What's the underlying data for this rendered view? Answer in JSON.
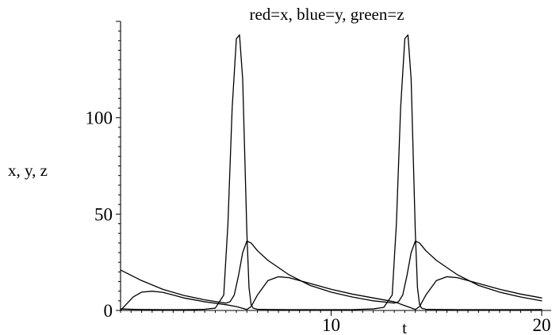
{
  "chart_data": {
    "type": "line",
    "title": "red=x, blue=y, green=z",
    "xlabel": "t",
    "ylabel": "x, y, z",
    "xlim": [
      0,
      20
    ],
    "ylim": [
      0,
      150
    ],
    "x_ticks": [
      10,
      20
    ],
    "x_tick_labels": [
      "10",
      "20"
    ],
    "y_ticks": [
      0,
      50,
      100
    ],
    "y_tick_labels": [
      "0",
      "50",
      "100"
    ],
    "grid": false,
    "legend": "none",
    "series": [
      {
        "name": "x",
        "x": [
          0,
          0.5,
          1,
          1.5,
          2,
          2.5,
          3,
          3.5,
          4,
          4.5,
          4.9,
          5.1,
          5.3,
          5.5,
          5.65,
          5.8,
          5.9,
          6,
          6.1,
          6.2,
          6.3,
          6.5,
          7,
          7.5,
          8,
          9,
          10,
          11,
          12,
          12.5,
          12.9,
          13.1,
          13.3,
          13.5,
          13.65,
          13.8,
          13.9,
          14,
          14.1,
          14.2,
          14.3,
          14.5,
          15,
          15.5,
          16,
          17,
          18,
          19,
          20
        ],
        "values": [
          0.8,
          0.6,
          0.5,
          0.45,
          0.4,
          0.4,
          0.4,
          0.45,
          0.6,
          1.2,
          8,
          45,
          105,
          141,
          143,
          120,
          80,
          40,
          12,
          3,
          1.2,
          0.6,
          0.5,
          0.45,
          0.42,
          0.4,
          0.4,
          0.4,
          0.8,
          1.6,
          8,
          45,
          105,
          141,
          143,
          120,
          80,
          40,
          12,
          3,
          1.2,
          0.6,
          0.5,
          0.45,
          0.42,
          0.4,
          0.4,
          0.4,
          0.45
        ]
      },
      {
        "name": "y",
        "x": [
          0,
          1,
          2,
          3,
          4,
          5,
          5.2,
          5.4,
          5.6,
          5.8,
          6,
          6.2,
          6.5,
          7,
          8,
          9,
          10,
          11,
          12,
          13,
          13.2,
          13.4,
          13.6,
          13.8,
          14,
          14.2,
          14.5,
          15,
          16,
          17,
          18,
          19,
          20
        ],
        "values": [
          21,
          15.5,
          11,
          7.8,
          5.5,
          3.8,
          4.5,
          8,
          18,
          30,
          36,
          35,
          31,
          26,
          18.5,
          13,
          9.5,
          7,
          5,
          3.8,
          4.5,
          8,
          18,
          30,
          36,
          35,
          31,
          26,
          18.5,
          13,
          9.5,
          7,
          5
        ]
      },
      {
        "name": "z",
        "x": [
          0,
          0.3,
          0.6,
          1,
          1.5,
          2,
          2.5,
          3,
          4,
          5,
          5.5,
          6,
          6.2,
          6.5,
          7,
          7.5,
          8,
          9,
          10,
          11,
          12,
          13,
          13.5,
          14,
          14.2,
          14.5,
          15,
          15.5,
          16,
          17,
          18,
          19,
          20
        ],
        "values": [
          0,
          3.5,
          7,
          9.5,
          10,
          9.4,
          8,
          6.5,
          4.5,
          3,
          2,
          0.5,
          2,
          8,
          15.5,
          17.5,
          17,
          14,
          11,
          8.5,
          6.5,
          4.5,
          2.5,
          0.5,
          2,
          8,
          15.5,
          17.5,
          17,
          14,
          11,
          8.5,
          6.5
        ]
      }
    ]
  }
}
